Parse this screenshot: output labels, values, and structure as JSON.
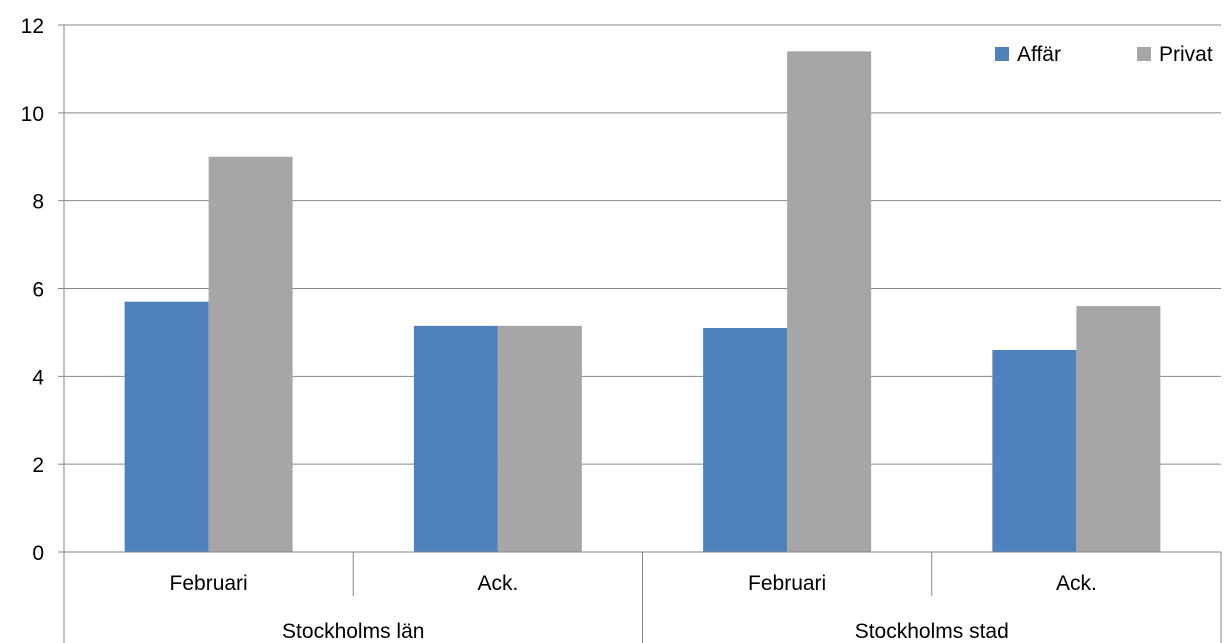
{
  "chart_data": {
    "type": "bar",
    "groups": [
      {
        "label": "Stockholms län",
        "categories": [
          "Februari",
          "Ack."
        ]
      },
      {
        "label": "Stockholms stad",
        "categories": [
          "Februari",
          "Ack."
        ]
      }
    ],
    "categories": [
      "Februari",
      "Ack.",
      "Februari",
      "Ack."
    ],
    "series": [
      {
        "name": "Affär",
        "color": "#4f81bd",
        "values": [
          5.7,
          5.15,
          5.1,
          4.6
        ]
      },
      {
        "name": "Privat",
        "color": "#a6a6a6",
        "values": [
          9.0,
          5.15,
          11.4,
          5.6
        ]
      }
    ],
    "ylim": [
      0,
      12
    ],
    "yticks": [
      "0",
      "2",
      "4",
      "6",
      "8",
      "10",
      "12"
    ],
    "grid": true,
    "legend_position": "top-right"
  }
}
